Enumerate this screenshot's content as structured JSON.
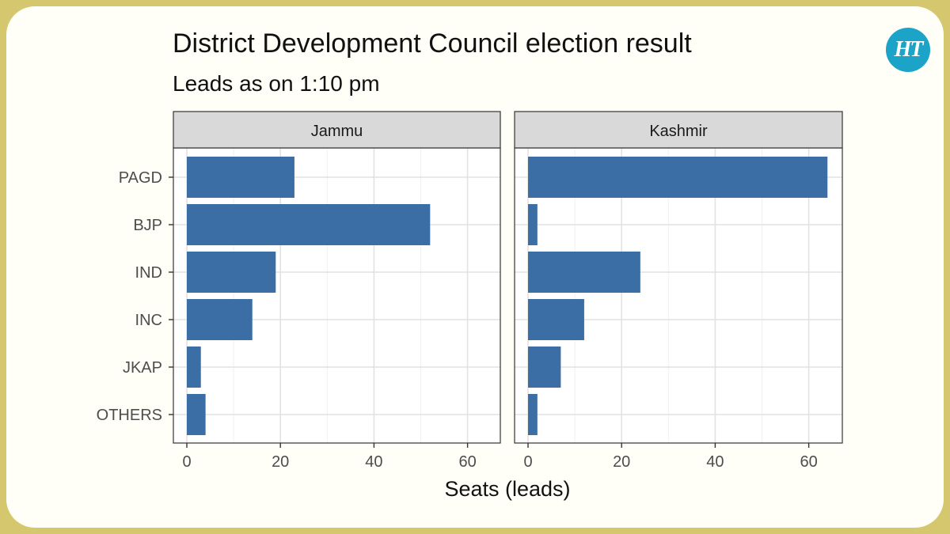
{
  "header": {
    "title": "District Development Council election result",
    "subtitle": "Leads as on 1:10 pm",
    "logo_text": "HT"
  },
  "colors": {
    "background": "#d5c76e",
    "card": "#fffff8",
    "bar": "#3a6ea5",
    "strip": "#d9d9d9",
    "logo": "#1ba3c8"
  },
  "chart_data": {
    "type": "bar",
    "orientation": "horizontal",
    "xlabel": "Seats (leads)",
    "ylabel": "",
    "xlim": [
      0,
      70
    ],
    "x_ticks": [
      0,
      20,
      40,
      60
    ],
    "grid": true,
    "categories": [
      "PAGD",
      "BJP",
      "IND",
      "INC",
      "JKAP",
      "OTHERS"
    ],
    "panels": [
      {
        "name": "Jammu",
        "values": [
          23,
          52,
          19,
          14,
          3,
          4
        ]
      },
      {
        "name": "Kashmir",
        "values": [
          64,
          2,
          24,
          12,
          7,
          2
        ]
      }
    ]
  }
}
